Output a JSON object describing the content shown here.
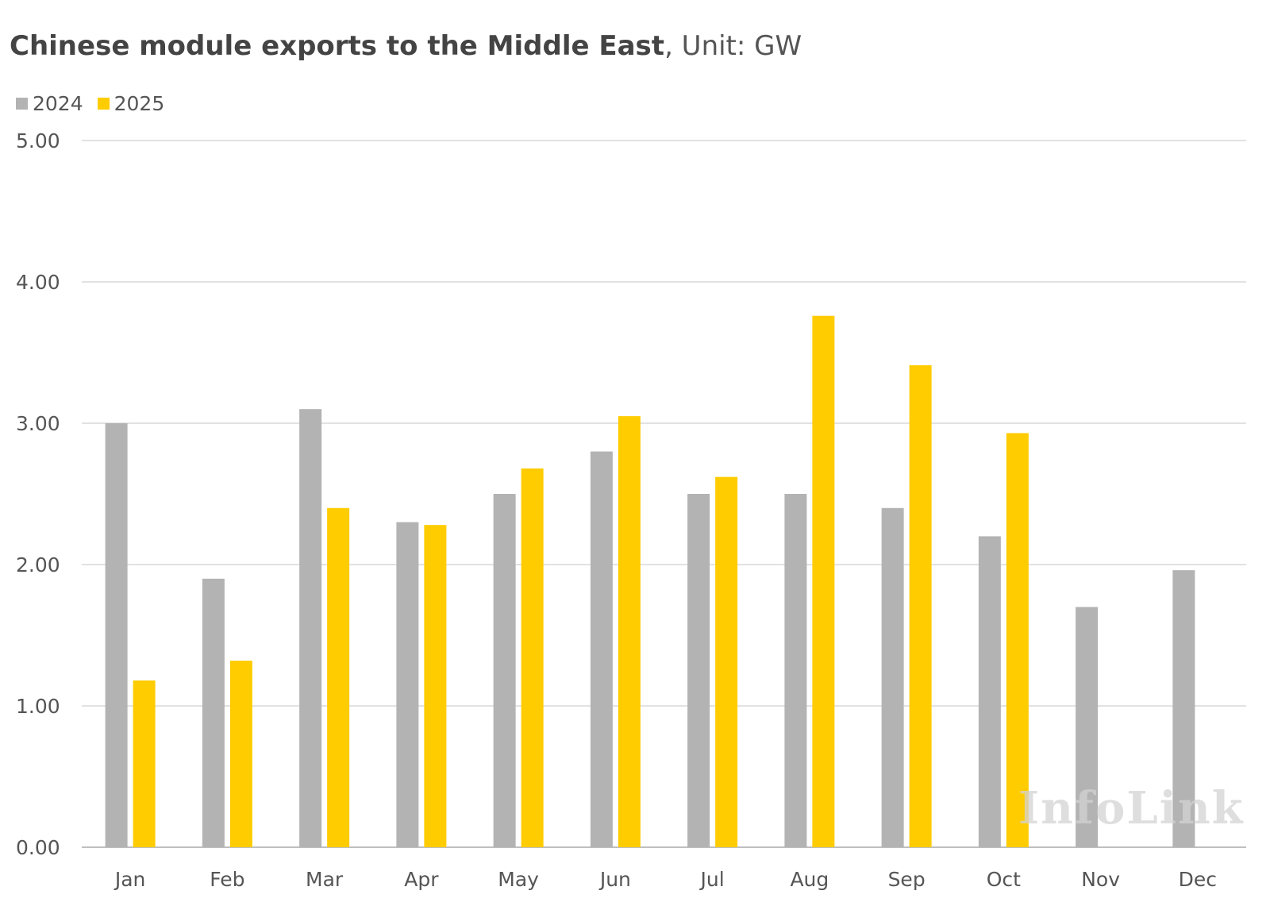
{
  "title": {
    "bold": "Chinese module exports to the Middle East",
    "rest": ", Unit: GW"
  },
  "watermark": "InfoLink",
  "colors": {
    "2024": "#b3b3b3",
    "2025": "#ffcc00",
    "grid": "#d9d9d9",
    "text": "#555555"
  },
  "chart_data": {
    "type": "bar",
    "title": "Chinese module exports to the Middle East, Unit: GW",
    "xlabel": "",
    "ylabel": "",
    "categories": [
      "Jan",
      "Feb",
      "Mar",
      "Apr",
      "May",
      "Jun",
      "Jul",
      "Aug",
      "Sep",
      "Oct",
      "Nov",
      "Dec"
    ],
    "series": [
      {
        "name": "2024",
        "values": [
          3.0,
          1.9,
          3.1,
          2.3,
          2.5,
          2.8,
          2.5,
          2.5,
          2.4,
          2.2,
          1.7,
          1.96
        ]
      },
      {
        "name": "2025",
        "values": [
          1.18,
          1.32,
          2.4,
          2.28,
          2.68,
          3.05,
          2.62,
          3.76,
          3.41,
          2.93,
          null,
          null
        ]
      }
    ],
    "ylim": [
      0,
      5
    ],
    "yticks": [
      "0.00",
      "1.00",
      "2.00",
      "3.00",
      "4.00",
      "5.00"
    ],
    "grid": true,
    "legend_position": "top-left"
  }
}
